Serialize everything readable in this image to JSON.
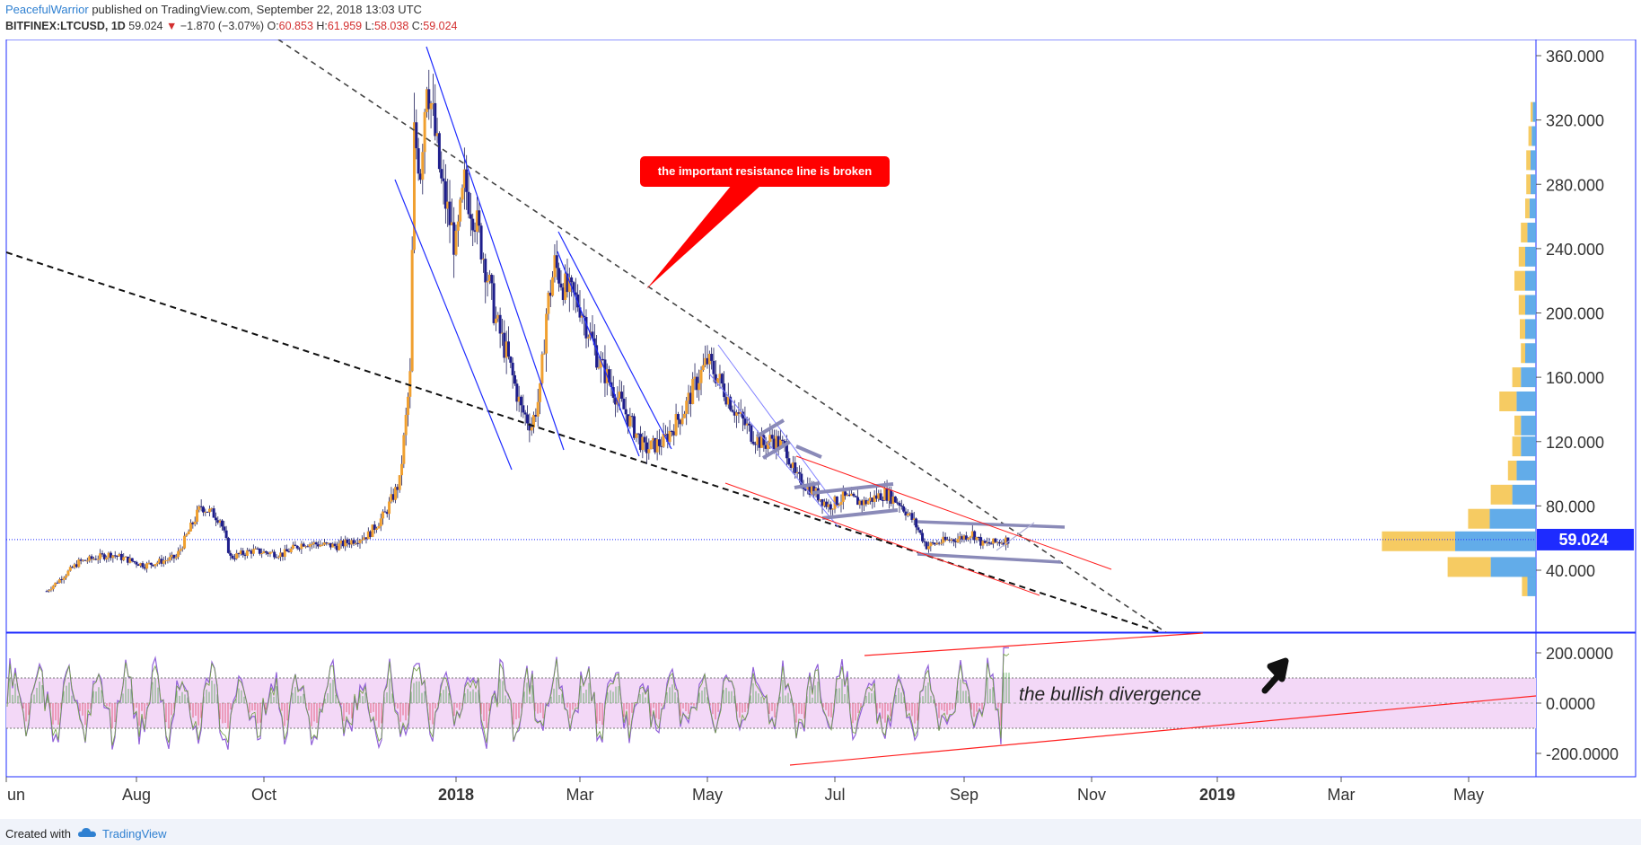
{
  "header": {
    "author": "PeacefulWarrior",
    "published": " published on TradingView.com, September 22, 2018 13:03 UTC",
    "symbol": "BITFINEX:LTCUSD, 1D",
    "last": "59.024",
    "arrow": "▼",
    "change": "−1.870 (−3.07%)",
    "o_label": "O:",
    "o_value": "60.853",
    "h_label": "H:",
    "h_value": "61.959",
    "l_label": "L:",
    "l_value": "58.038",
    "c_label": "C:",
    "c_value": "59.024"
  },
  "annotations": {
    "resistance_callout": "the important resistance line is broken",
    "divergence_text": "the bullish divergence"
  },
  "footer": {
    "created_with": "Created with",
    "brand": "TradingView"
  },
  "colors": {
    "accent_blue": "#1e2bff",
    "candle_up": "#f0a030",
    "candle_down": "#1e1e8c",
    "callout_red": "#ff0000",
    "osc_band": "#f3d8f7",
    "price_tag": "#1e2bff"
  },
  "chart_data": [
    {
      "type": "candlestick",
      "symbol": "BITFINEX:LTCUSD",
      "interval": "1D",
      "ylim": [
        0,
        380
      ],
      "yticks": [
        40,
        80,
        120,
        160,
        200,
        240,
        280,
        320,
        360
      ],
      "ytick_labels": [
        "40.000",
        "80.000",
        "120.000",
        "160.000",
        "200.000",
        "240.000",
        "280.000",
        "320.000",
        "360.000"
      ],
      "last_price_label": "59.024",
      "last_price": 59.024,
      "xtick_labels": [
        "un",
        "Aug",
        "Oct",
        "2018",
        "Mar",
        "May",
        "Jul",
        "Sep",
        "Nov",
        "2019",
        "Mar",
        "May"
      ],
      "price_path": [
        [
          "2017-06-20",
          27
        ],
        [
          "2017-07-05",
          45
        ],
        [
          "2017-07-20",
          50
        ],
        [
          "2017-08-05",
          43
        ],
        [
          "2017-08-20",
          48
        ],
        [
          "2017-09-01",
          80
        ],
        [
          "2017-09-10",
          72
        ],
        [
          "2017-09-15",
          48
        ],
        [
          "2017-09-25",
          52
        ],
        [
          "2017-10-10",
          50
        ],
        [
          "2017-10-20",
          57
        ],
        [
          "2017-11-05",
          55
        ],
        [
          "2017-11-20",
          62
        ],
        [
          "2017-11-28",
          75
        ],
        [
          "2017-12-05",
          95
        ],
        [
          "2017-12-10",
          160
        ],
        [
          "2017-12-12",
          310
        ],
        [
          "2017-12-15",
          290
        ],
        [
          "2017-12-18",
          350
        ],
        [
          "2017-12-20",
          330
        ],
        [
          "2017-12-25",
          280
        ],
        [
          "2018-01-01",
          240
        ],
        [
          "2018-01-05",
          280
        ],
        [
          "2018-01-10",
          260
        ],
        [
          "2018-01-15",
          230
        ],
        [
          "2018-01-20",
          195
        ],
        [
          "2018-01-25",
          175
        ],
        [
          "2018-02-01",
          140
        ],
        [
          "2018-02-06",
          130
        ],
        [
          "2018-02-10",
          150
        ],
        [
          "2018-02-13",
          200
        ],
        [
          "2018-02-17",
          230
        ],
        [
          "2018-02-22",
          215
        ],
        [
          "2018-03-01",
          205
        ],
        [
          "2018-03-10",
          170
        ],
        [
          "2018-03-18",
          150
        ],
        [
          "2018-03-28",
          125
        ],
        [
          "2018-04-01",
          115
        ],
        [
          "2018-04-10",
          120
        ],
        [
          "2018-04-20",
          140
        ],
        [
          "2018-04-25",
          155
        ],
        [
          "2018-05-01",
          170
        ],
        [
          "2018-05-05",
          162
        ],
        [
          "2018-05-15",
          138
        ],
        [
          "2018-05-22",
          125
        ],
        [
          "2018-05-28",
          118
        ],
        [
          "2018-06-01",
          122
        ],
        [
          "2018-06-08",
          115
        ],
        [
          "2018-06-12",
          98
        ],
        [
          "2018-06-20",
          90
        ],
        [
          "2018-06-28",
          80
        ],
        [
          "2018-07-05",
          85
        ],
        [
          "2018-07-15",
          82
        ],
        [
          "2018-07-25",
          88
        ],
        [
          "2018-08-01",
          82
        ],
        [
          "2018-08-08",
          70
        ],
        [
          "2018-08-14",
          55
        ],
        [
          "2018-08-22",
          58
        ],
        [
          "2018-08-30",
          60
        ],
        [
          "2018-09-05",
          63
        ],
        [
          "2018-09-10",
          56
        ],
        [
          "2018-09-15",
          57
        ],
        [
          "2018-09-22",
          59
        ]
      ]
    },
    {
      "type": "oscillator",
      "ylim": [
        -280,
        280
      ],
      "yticks": [
        -200,
        0,
        200
      ],
      "ytick_labels": [
        "-200.0000",
        "0.0000",
        "200.0000"
      ],
      "band": [
        -100,
        100
      ]
    },
    {
      "type": "volume_profile",
      "bins": [
        {
          "price": 30,
          "up": 5,
          "down": 8
        },
        {
          "price": 42,
          "up": 40,
          "down": 42
        },
        {
          "price": 58,
          "up": 68,
          "down": 75
        },
        {
          "price": 72,
          "up": 20,
          "down": 43
        },
        {
          "price": 87,
          "up": 20,
          "down": 22
        },
        {
          "price": 102,
          "up": 8,
          "down": 18
        },
        {
          "price": 117,
          "up": 8,
          "down": 14
        },
        {
          "price": 130,
          "up": 6,
          "down": 14
        },
        {
          "price": 145,
          "up": 16,
          "down": 18
        },
        {
          "price": 160,
          "up": 8,
          "down": 14
        },
        {
          "price": 175,
          "up": 4,
          "down": 10
        },
        {
          "price": 190,
          "up": 5,
          "down": 10
        },
        {
          "price": 205,
          "up": 6,
          "down": 10
        },
        {
          "price": 220,
          "up": 10,
          "down": 10
        },
        {
          "price": 235,
          "up": 6,
          "down": 10
        },
        {
          "price": 250,
          "up": 6,
          "down": 8
        },
        {
          "price": 265,
          "up": 4,
          "down": 6
        },
        {
          "price": 280,
          "up": 4,
          "down": 5
        },
        {
          "price": 295,
          "up": 4,
          "down": 5
        },
        {
          "price": 310,
          "up": 3,
          "down": 4
        },
        {
          "price": 325,
          "up": 2,
          "down": 3
        }
      ]
    }
  ]
}
